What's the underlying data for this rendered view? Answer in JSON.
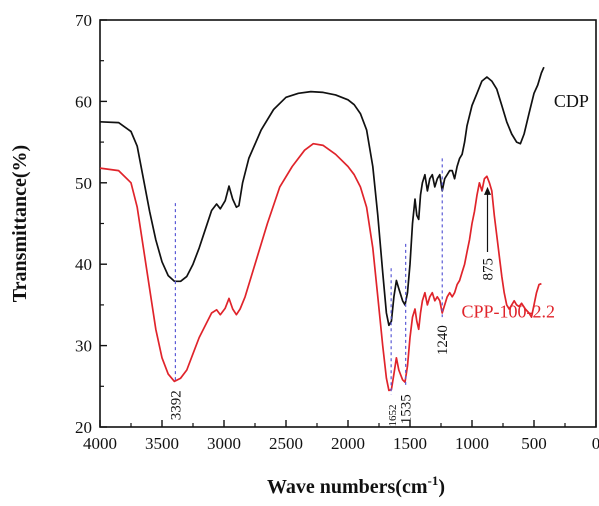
{
  "chart_data": {
    "type": "line",
    "xlabel": "Wave numbers(cm",
    "xlabel_sup": "-1",
    "xlabel_close": ")",
    "ylabel": "Transmittance(%)",
    "xlim": [
      4000,
      0
    ],
    "ylim": [
      20,
      70
    ],
    "x_ticks": [
      "4000",
      "3500",
      "3000",
      "2500",
      "2000",
      "1500",
      "1000",
      "500",
      "0"
    ],
    "y_ticks": [
      "20",
      "30",
      "40",
      "50",
      "60",
      "70"
    ],
    "grid": false,
    "series": [
      {
        "name": "CDP",
        "color": "#111111",
        "points": [
          [
            4000,
            57.5
          ],
          [
            3850,
            57.4
          ],
          [
            3750,
            56.3
          ],
          [
            3700,
            54.5
          ],
          [
            3650,
            50.5
          ],
          [
            3600,
            46.5
          ],
          [
            3550,
            43.0
          ],
          [
            3500,
            40.3
          ],
          [
            3450,
            38.6
          ],
          [
            3400,
            37.9
          ],
          [
            3350,
            37.9
          ],
          [
            3300,
            38.5
          ],
          [
            3250,
            40.0
          ],
          [
            3200,
            42.0
          ],
          [
            3150,
            44.3
          ],
          [
            3100,
            46.6
          ],
          [
            3060,
            47.4
          ],
          [
            3030,
            46.8
          ],
          [
            2990,
            47.8
          ],
          [
            2960,
            49.6
          ],
          [
            2930,
            48.0
          ],
          [
            2900,
            47.0
          ],
          [
            2880,
            47.2
          ],
          [
            2850,
            50.0
          ],
          [
            2800,
            53.0
          ],
          [
            2700,
            56.5
          ],
          [
            2600,
            59.0
          ],
          [
            2500,
            60.5
          ],
          [
            2400,
            61.0
          ],
          [
            2300,
            61.2
          ],
          [
            2200,
            61.1
          ],
          [
            2100,
            60.8
          ],
          [
            2000,
            60.2
          ],
          [
            1950,
            59.6
          ],
          [
            1900,
            58.5
          ],
          [
            1850,
            56.5
          ],
          [
            1800,
            52.0
          ],
          [
            1760,
            46.0
          ],
          [
            1720,
            39.0
          ],
          [
            1690,
            34.0
          ],
          [
            1670,
            32.5
          ],
          [
            1650,
            33.0
          ],
          [
            1630,
            36.0
          ],
          [
            1610,
            38.0
          ],
          [
            1590,
            37.0
          ],
          [
            1560,
            35.5
          ],
          [
            1540,
            35.0
          ],
          [
            1520,
            36.5
          ],
          [
            1500,
            40.0
          ],
          [
            1480,
            45.0
          ],
          [
            1460,
            48.0
          ],
          [
            1445,
            46.0
          ],
          [
            1430,
            45.5
          ],
          [
            1415,
            48.5
          ],
          [
            1400,
            50.0
          ],
          [
            1380,
            51.0
          ],
          [
            1360,
            49.0
          ],
          [
            1340,
            50.5
          ],
          [
            1320,
            51.0
          ],
          [
            1300,
            49.5
          ],
          [
            1280,
            50.5
          ],
          [
            1260,
            51.0
          ],
          [
            1240,
            49.0
          ],
          [
            1220,
            50.5
          ],
          [
            1200,
            51.0
          ],
          [
            1180,
            51.5
          ],
          [
            1160,
            51.5
          ],
          [
            1140,
            50.5
          ],
          [
            1120,
            52.0
          ],
          [
            1100,
            53.0
          ],
          [
            1080,
            53.5
          ],
          [
            1060,
            55.0
          ],
          [
            1040,
            57.0
          ],
          [
            1000,
            59.5
          ],
          [
            960,
            61.0
          ],
          [
            920,
            62.5
          ],
          [
            880,
            63.0
          ],
          [
            840,
            62.5
          ],
          [
            800,
            61.5
          ],
          [
            760,
            59.5
          ],
          [
            720,
            57.5
          ],
          [
            680,
            56.0
          ],
          [
            640,
            55.0
          ],
          [
            610,
            54.8
          ],
          [
            580,
            56.0
          ],
          [
            540,
            58.5
          ],
          [
            500,
            61.0
          ],
          [
            470,
            62.0
          ],
          [
            440,
            63.5
          ],
          [
            420,
            64.2
          ]
        ]
      },
      {
        "name": "CPP-100-2.2",
        "color": "#e0242b",
        "points": [
          [
            4000,
            51.8
          ],
          [
            3850,
            51.5
          ],
          [
            3750,
            50.0
          ],
          [
            3700,
            47.0
          ],
          [
            3650,
            42.0
          ],
          [
            3600,
            37.0
          ],
          [
            3550,
            32.0
          ],
          [
            3500,
            28.5
          ],
          [
            3450,
            26.5
          ],
          [
            3400,
            25.6
          ],
          [
            3350,
            26.0
          ],
          [
            3300,
            27.0
          ],
          [
            3250,
            29.0
          ],
          [
            3200,
            31.0
          ],
          [
            3150,
            32.5
          ],
          [
            3100,
            34.0
          ],
          [
            3060,
            34.4
          ],
          [
            3030,
            33.8
          ],
          [
            2990,
            34.6
          ],
          [
            2960,
            35.8
          ],
          [
            2930,
            34.5
          ],
          [
            2900,
            33.8
          ],
          [
            2870,
            34.5
          ],
          [
            2830,
            36.0
          ],
          [
            2750,
            40.0
          ],
          [
            2650,
            45.0
          ],
          [
            2550,
            49.5
          ],
          [
            2450,
            52.0
          ],
          [
            2350,
            54.0
          ],
          [
            2280,
            54.8
          ],
          [
            2200,
            54.6
          ],
          [
            2100,
            53.5
          ],
          [
            2000,
            52.0
          ],
          [
            1950,
            51.0
          ],
          [
            1900,
            49.5
          ],
          [
            1850,
            47.0
          ],
          [
            1800,
            42.0
          ],
          [
            1760,
            36.0
          ],
          [
            1720,
            30.0
          ],
          [
            1690,
            26.0
          ],
          [
            1670,
            24.5
          ],
          [
            1650,
            24.6
          ],
          [
            1630,
            26.5
          ],
          [
            1610,
            28.5
          ],
          [
            1590,
            27.0
          ],
          [
            1560,
            25.8
          ],
          [
            1540,
            25.5
          ],
          [
            1520,
            27.5
          ],
          [
            1500,
            31.0
          ],
          [
            1480,
            33.5
          ],
          [
            1460,
            34.5
          ],
          [
            1445,
            33.0
          ],
          [
            1430,
            32.0
          ],
          [
            1415,
            34.0
          ],
          [
            1400,
            35.5
          ],
          [
            1380,
            36.5
          ],
          [
            1360,
            35.0
          ],
          [
            1340,
            36.0
          ],
          [
            1320,
            36.5
          ],
          [
            1300,
            35.5
          ],
          [
            1280,
            36.0
          ],
          [
            1260,
            35.5
          ],
          [
            1240,
            34.0
          ],
          [
            1220,
            35.0
          ],
          [
            1200,
            36.0
          ],
          [
            1180,
            36.5
          ],
          [
            1160,
            36.0
          ],
          [
            1140,
            36.5
          ],
          [
            1120,
            37.5
          ],
          [
            1100,
            38.0
          ],
          [
            1080,
            39.0
          ],
          [
            1060,
            40.0
          ],
          [
            1040,
            41.5
          ],
          [
            1020,
            43.0
          ],
          [
            1000,
            45.0
          ],
          [
            980,
            46.5
          ],
          [
            960,
            48.5
          ],
          [
            940,
            50.0
          ],
          [
            920,
            49.0
          ],
          [
            900,
            50.5
          ],
          [
            880,
            50.8
          ],
          [
            860,
            50.0
          ],
          [
            840,
            49.0
          ],
          [
            820,
            46.0
          ],
          [
            800,
            43.5
          ],
          [
            780,
            41.0
          ],
          [
            760,
            38.5
          ],
          [
            740,
            36.5
          ],
          [
            720,
            35.0
          ],
          [
            700,
            34.5
          ],
          [
            680,
            35.0
          ],
          [
            660,
            35.5
          ],
          [
            640,
            35.0
          ],
          [
            620,
            34.8
          ],
          [
            600,
            35.2
          ],
          [
            570,
            34.5
          ],
          [
            540,
            34.0
          ],
          [
            520,
            33.5
          ],
          [
            500,
            35.0
          ],
          [
            480,
            36.5
          ],
          [
            460,
            37.5
          ],
          [
            440,
            37.6
          ]
        ]
      }
    ],
    "annotations": [
      {
        "text": "3392",
        "x": 3392,
        "y_top": 47.5,
        "y_bottom": 25.5,
        "rotated": true,
        "small": false
      },
      {
        "text": "1652",
        "x": 1652,
        "y_top": 39.5,
        "y_bottom": 24.0,
        "rotated": true,
        "small": true
      },
      {
        "text": "1535",
        "x": 1535,
        "y_top": 42.5,
        "y_bottom": 25.0,
        "rotated": true,
        "small": false
      },
      {
        "text": "1240",
        "x": 1240,
        "y_top": 53.0,
        "y_bottom": 33.5,
        "rotated": true,
        "small": false
      },
      {
        "text": "875",
        "x": 875,
        "y_top": 49.5,
        "y_bottom": 41.5,
        "rotated": true,
        "small": false,
        "arrow": true
      }
    ]
  }
}
